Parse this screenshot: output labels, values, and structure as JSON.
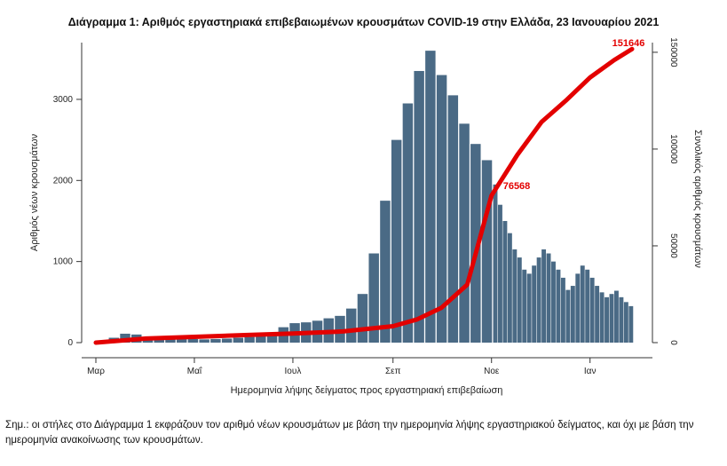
{
  "title": "Διάγραμμα 1: Αριθμός εργαστηριακά επιβεβαιωμένων κρουσμάτων COVID-19 στην Ελλάδα, 23 Ιανουαρίου 2021",
  "note": "Σημ.: οι στήλες στο Διάγραμμα 1 εκφράζουν τον αριθμό νέων κρουσμάτων με βάση την ημερομηνία λήψης εργαστηριακού δείγματος, και όχι με βάση την ημερομηνία ανακοίνωσης των κρουσμάτων.",
  "chart_data": {
    "type": "bar",
    "xlabel": "Ημερομηνία λήψης δείγματος προς εργαστηριακή επιβεβαίωση",
    "ylabel": "Αριθμός νέων κρουσμάτων",
    "y2label": "Συνολικός αριθμός κρουσμάτων",
    "ylim": [
      0,
      3700
    ],
    "y2lim": [
      0,
      155000
    ],
    "yticks": [
      0,
      1000,
      2000,
      3000
    ],
    "y2ticks": [
      0,
      50000,
      100000,
      150000
    ],
    "xticks": [
      "Μαρ",
      "Μαΐ",
      "Ιουλ",
      "Σεπ",
      "Νοε",
      "Ιαν"
    ],
    "bar_color": "#4a6a85",
    "line_color": "#e30000",
    "grid": false,
    "series": [
      {
        "type": "bar",
        "axis": "left",
        "x": [
          1,
          8,
          15,
          22,
          29,
          36,
          43,
          50,
          57,
          64,
          71,
          78,
          85,
          92,
          99,
          106,
          113,
          120,
          127,
          134,
          141,
          148,
          155,
          162,
          169,
          176,
          183,
          190,
          197,
          204,
          211,
          218,
          225,
          232,
          239,
          246,
          249,
          252,
          255,
          258,
          261,
          264,
          267,
          270,
          273,
          276,
          279,
          282,
          285,
          288,
          291,
          294,
          297,
          300,
          303,
          306,
          309,
          312,
          315,
          318,
          321,
          324,
          327,
          330
        ],
        "values": [
          20,
          60,
          110,
          100,
          70,
          60,
          55,
          50,
          45,
          40,
          45,
          50,
          60,
          70,
          90,
          120,
          190,
          240,
          250,
          270,
          300,
          330,
          420,
          600,
          1100,
          1750,
          2500,
          2950,
          3350,
          3600,
          3300,
          3050,
          2700,
          2450,
          2250,
          1950,
          1700,
          1500,
          1350,
          1150,
          1050,
          900,
          850,
          950,
          1050,
          1150,
          1100,
          1000,
          900,
          800,
          650,
          700,
          850,
          950,
          900,
          800,
          700,
          620,
          560,
          600,
          640,
          560,
          500,
          450
        ]
      },
      {
        "type": "line",
        "axis": "right",
        "x": [
          0,
          31,
          61,
          92,
          122,
          153,
          184,
          199,
          214,
          230,
          245,
          261,
          276,
          291,
          306,
          321,
          332
        ],
        "values": [
          0,
          2100,
          3000,
          3900,
          4700,
          5800,
          8500,
          12000,
          18000,
          30000,
          76000,
          97000,
          114000,
          125000,
          137000,
          146000,
          151646
        ]
      }
    ],
    "annotations": [
      "151646",
      "76568"
    ]
  }
}
